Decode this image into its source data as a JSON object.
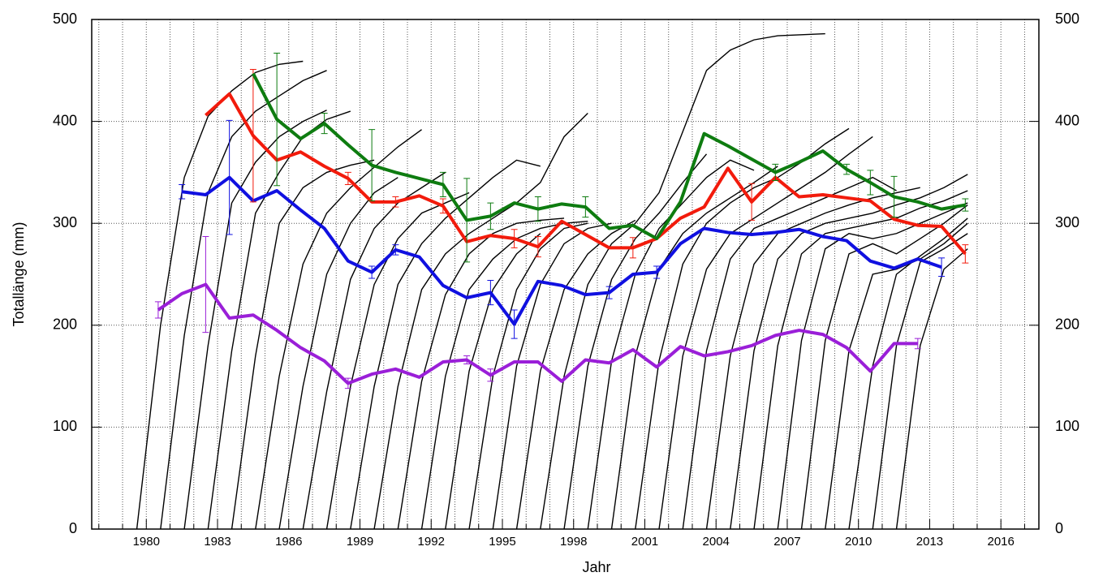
{
  "chart_data": {
    "type": "line",
    "x_label": "Jahr",
    "y_label": "Totallänge (mm)",
    "xlim": [
      1977.7,
      2017.6
    ],
    "xticks": [
      1980,
      1983,
      1986,
      1989,
      1992,
      1995,
      1998,
      2001,
      2004,
      2007,
      2010,
      2013,
      2016
    ],
    "xminorticks": [
      1978,
      1979,
      1981,
      1982,
      1984,
      1985,
      1987,
      1988,
      1990,
      1991,
      1993,
      1994,
      1996,
      1997,
      1999,
      2000,
      2002,
      2003,
      2005,
      2006,
      2008,
      2009,
      2011,
      2012,
      2014,
      2015,
      2017
    ],
    "ylim": [
      0,
      500
    ],
    "yticks": [
      0,
      100,
      200,
      300,
      400,
      500
    ],
    "y2lim": [
      0,
      500
    ],
    "y2ticks": [
      0,
      100,
      200,
      300,
      400,
      500
    ],
    "grid": true,
    "x": [
      1980.5,
      1981.5,
      1982.5,
      1983.5,
      1984.5,
      1985.5,
      1986.5,
      1987.5,
      1988.5,
      1989.5,
      1990.5,
      1991.5,
      1992.5,
      1993.5,
      1994.5,
      1995.5,
      1996.5,
      1997.5,
      1998.5,
      1999.5,
      2000.5,
      2001.5,
      2002.5,
      2003.5,
      2004.5,
      2005.5,
      2006.5,
      2007.5,
      2008.5,
      2009.5,
      2010.5,
      2011.5,
      2012.5,
      2013.5,
      2014.5
    ],
    "series": [
      {
        "color": "#9a1fd8",
        "values": [
          215,
          231,
          240,
          207,
          210,
          195,
          178,
          165,
          143,
          152,
          157,
          149,
          164,
          166,
          151,
          164,
          164,
          145,
          166,
          163,
          176,
          159,
          179,
          170,
          174,
          180,
          190,
          195,
          191,
          178,
          155,
          182,
          182,
          null,
          null
        ],
        "errors": [
          8,
          null,
          47,
          null,
          null,
          null,
          null,
          null,
          5,
          null,
          null,
          null,
          null,
          4,
          6,
          null,
          null,
          null,
          null,
          null,
          null,
          null,
          null,
          null,
          null,
          null,
          null,
          null,
          null,
          null,
          null,
          null,
          5,
          null,
          null
        ]
      },
      {
        "color": "#1010e0",
        "values": [
          null,
          331,
          328,
          345,
          322,
          332,
          313,
          295,
          263,
          252,
          274,
          267,
          239,
          227,
          232,
          201,
          243,
          239,
          230,
          232,
          250,
          252,
          280,
          295,
          291,
          289,
          291,
          294,
          287,
          283,
          263,
          256,
          265,
          257,
          null
        ],
        "errors": [
          null,
          7,
          null,
          56,
          null,
          null,
          null,
          null,
          null,
          6,
          5,
          null,
          null,
          null,
          12,
          14,
          null,
          null,
          null,
          6,
          null,
          6,
          null,
          null,
          null,
          null,
          null,
          null,
          null,
          null,
          null,
          null,
          null,
          9,
          null
        ]
      },
      {
        "color": "#f21b0c",
        "values": [
          null,
          null,
          406,
          427,
          386,
          362,
          370,
          356,
          344,
          321,
          321,
          327,
          317,
          282,
          288,
          285,
          277,
          302,
          289,
          276,
          276,
          285,
          305,
          316,
          354,
          321,
          345,
          326,
          328,
          325,
          322,
          304,
          298,
          297,
          270
        ],
        "errors": [
          null,
          null,
          null,
          null,
          65,
          null,
          null,
          null,
          6,
          null,
          5,
          null,
          7,
          null,
          null,
          9,
          10,
          null,
          null,
          null,
          10,
          null,
          null,
          null,
          null,
          18,
          null,
          null,
          null,
          null,
          null,
          null,
          null,
          null,
          9
        ]
      },
      {
        "color": "#0e7c10",
        "values": [
          null,
          null,
          null,
          null,
          447,
          402,
          383,
          398,
          377,
          357,
          350,
          344,
          338,
          303,
          307,
          320,
          314,
          319,
          316,
          295,
          298,
          285,
          321,
          388,
          376,
          363,
          350,
          360,
          371,
          353,
          340,
          326,
          321,
          314,
          318
        ],
        "errors": [
          null,
          null,
          null,
          null,
          null,
          65,
          null,
          10,
          null,
          35,
          null,
          null,
          12,
          41,
          13,
          null,
          12,
          null,
          10,
          null,
          null,
          null,
          null,
          null,
          null,
          null,
          8,
          null,
          null,
          5,
          12,
          20,
          null,
          null,
          6
        ]
      }
    ],
    "growth_curves": [
      {
        "x": [
          1979.6,
          1980.6,
          1981.6,
          1982.6,
          1983.6,
          1984.6,
          1985.6,
          1986.6
        ],
        "values": [
          0,
          200,
          345,
          405,
          430,
          448,
          456,
          459
        ]
      },
      {
        "x": [
          1980.6,
          1981.6,
          1982.6,
          1983.6,
          1984.6,
          1985.6,
          1986.6,
          1987.6
        ],
        "values": [
          0,
          190,
          330,
          385,
          410,
          425,
          440,
          450
        ]
      },
      {
        "x": [
          1981.6,
          1982.6,
          1983.6,
          1984.6,
          1985.6,
          1986.6,
          1987.6
        ],
        "values": [
          0,
          180,
          320,
          360,
          385,
          400,
          411
        ]
      },
      {
        "x": [
          1982.6,
          1983.6,
          1984.6,
          1985.6,
          1986.6,
          1987.6,
          1988.6
        ],
        "values": [
          0,
          175,
          310,
          350,
          385,
          402,
          410
        ]
      },
      {
        "x": [
          1983.6,
          1984.6,
          1985.6,
          1986.6,
          1987.6,
          1988.6,
          1989.6
        ],
        "values": [
          0,
          170,
          300,
          335,
          350,
          357,
          362
        ]
      },
      {
        "x": [
          1984.6,
          1985.6,
          1986.6,
          1987.6,
          1988.6,
          1989.6,
          1990.6,
          1991.6
        ],
        "values": [
          0,
          150,
          260,
          310,
          335,
          355,
          375,
          392
        ]
      },
      {
        "x": [
          1985.6,
          1986.6,
          1987.6,
          1988.6,
          1989.6,
          1990.6
        ],
        "values": [
          0,
          140,
          250,
          300,
          330,
          345
        ]
      },
      {
        "x": [
          1986.6,
          1987.6,
          1988.6,
          1989.6,
          1990.6,
          1991.6,
          1992.6
        ],
        "values": [
          0,
          135,
          245,
          295,
          320,
          335,
          350
        ]
      },
      {
        "x": [
          1987.6,
          1988.6,
          1989.6,
          1990.6,
          1991.6,
          1992.6,
          1993.6
        ],
        "values": [
          0,
          140,
          240,
          285,
          310,
          320,
          330
        ]
      },
      {
        "x": [
          1988.6,
          1989.6,
          1990.6,
          1991.6,
          1992.6,
          1993.6,
          1994.6,
          1995.6,
          1996.6
        ],
        "values": [
          0,
          140,
          240,
          280,
          305,
          325,
          345,
          362,
          356
        ]
      },
      {
        "x": [
          1989.6,
          1990.6,
          1991.6,
          1992.6,
          1993.6,
          1994.6,
          1995.6,
          1996.6,
          1997.6,
          1998.6
        ],
        "values": [
          0,
          140,
          235,
          270,
          290,
          305,
          320,
          340,
          385,
          408
        ]
      },
      {
        "x": [
          1990.6,
          1991.6,
          1992.6,
          1993.6,
          1994.6,
          1995.6,
          1996.6,
          1997.6
        ],
        "values": [
          0,
          145,
          230,
          270,
          290,
          300,
          303,
          305
        ]
      },
      {
        "x": [
          1991.6,
          1992.6,
          1993.6,
          1994.6,
          1995.6,
          1996.6,
          1997.6,
          1998.6
        ],
        "values": [
          0,
          150,
          235,
          265,
          285,
          295,
          300,
          302
        ]
      },
      {
        "x": [
          1992.6,
          1993.6,
          1994.6,
          1995.6,
          1996.6
        ],
        "values": [
          0,
          155,
          235,
          270,
          290
        ]
      },
      {
        "x": [
          1993.6,
          1994.6,
          1995.6,
          1996.6,
          1997.6,
          1998.6
        ],
        "values": [
          0,
          150,
          235,
          275,
          295,
          300
        ]
      },
      {
        "x": [
          1994.6,
          1995.6,
          1996.6,
          1997.6,
          1998.6,
          1999.6
        ],
        "values": [
          0,
          160,
          240,
          280,
          295,
          300
        ]
      },
      {
        "x": [
          1995.6,
          1996.6,
          1997.6,
          1998.6,
          1999.6,
          2000.6
        ],
        "values": [
          0,
          155,
          235,
          270,
          290,
          303
        ]
      },
      {
        "x": [
          1996.6,
          1997.6,
          1998.6,
          1999.6,
          2000.6,
          2001.6,
          2002.6,
          2003.6,
          2004.6,
          2005.6,
          2006.6,
          2007.6,
          2008.6
        ],
        "values": [
          0,
          150,
          240,
          280,
          300,
          330,
          390,
          450,
          470,
          480,
          484,
          485,
          486
        ]
      },
      {
        "x": [
          1997.6,
          1998.6,
          1999.6,
          2000.6,
          2001.6,
          2002.6,
          2003.6
        ],
        "values": [
          0,
          160,
          245,
          285,
          310,
          340,
          368
        ]
      },
      {
        "x": [
          1998.6,
          1999.6,
          2000.6,
          2001.6,
          2002.6,
          2003.6,
          2004.6,
          2005.6
        ],
        "values": [
          0,
          165,
          250,
          295,
          320,
          345,
          362,
          352
        ]
      },
      {
        "x": [
          1999.6,
          2000.6,
          2001.6,
          2002.6,
          2003.6,
          2004.6,
          2005.6,
          2006.6
        ],
        "values": [
          0,
          170,
          255,
          290,
          310,
          325,
          340,
          356
        ]
      },
      {
        "x": [
          2000.6,
          2001.6,
          2002.6,
          2003.6,
          2004.6,
          2005.6,
          2006.6,
          2007.6,
          2008.6,
          2009.6
        ],
        "values": [
          0,
          165,
          260,
          300,
          320,
          335,
          345,
          360,
          378,
          393
        ]
      },
      {
        "x": [
          2001.6,
          2002.6,
          2003.6,
          2004.6,
          2005.6,
          2006.6,
          2007.6,
          2008.6,
          2009.6,
          2010.6
        ],
        "values": [
          0,
          170,
          255,
          290,
          305,
          320,
          335,
          350,
          368,
          385
        ]
      },
      {
        "x": [
          2002.6,
          2003.6,
          2004.6,
          2005.6,
          2006.6,
          2007.6,
          2008.6,
          2009.6,
          2010.6,
          2011.6
        ],
        "values": [
          0,
          175,
          265,
          295,
          305,
          315,
          325,
          335,
          345,
          332
        ]
      },
      {
        "x": [
          2003.6,
          2004.6,
          2005.6,
          2006.6,
          2007.6,
          2008.6,
          2009.6,
          2010.6,
          2011.6,
          2012.6
        ],
        "values": [
          0,
          170,
          260,
          290,
          300,
          310,
          318,
          325,
          330,
          335
        ]
      },
      {
        "x": [
          2004.6,
          2005.6,
          2006.6,
          2007.6,
          2008.6,
          2009.6,
          2010.6,
          2011.6,
          2012.6,
          2013.6,
          2014.6
        ],
        "values": [
          0,
          175,
          265,
          290,
          300,
          305,
          310,
          318,
          325,
          335,
          348
        ]
      },
      {
        "x": [
          2005.6,
          2006.6,
          2007.6,
          2008.6,
          2009.6,
          2010.6,
          2011.6,
          2012.6,
          2013.6,
          2014.6
        ],
        "values": [
          0,
          180,
          270,
          290,
          295,
          300,
          305,
          315,
          322,
          332
        ]
      },
      {
        "x": [
          2006.6,
          2007.6,
          2008.6,
          2009.6,
          2010.6,
          2011.6,
          2012.6,
          2013.6,
          2014.6
        ],
        "values": [
          0,
          185,
          275,
          290,
          285,
          290,
          300,
          310,
          320
        ]
      },
      {
        "x": [
          2007.6,
          2008.6,
          2009.6,
          2010.6,
          2011.6,
          2012.6,
          2013.6,
          2014.6
        ],
        "values": [
          0,
          185,
          270,
          280,
          270,
          285,
          300,
          318
        ]
      },
      {
        "x": [
          2008.6,
          2009.6,
          2010.6,
          2011.6,
          2012.6,
          2013.6,
          2014.6
        ],
        "values": [
          0,
          175,
          250,
          255,
          265,
          280,
          300
        ]
      },
      {
        "x": [
          2009.6,
          2010.6,
          2011.6,
          2012.6,
          2013.6,
          2014.6
        ],
        "values": [
          0,
          160,
          250,
          268,
          285,
          305
        ]
      },
      {
        "x": [
          2010.6,
          2011.6,
          2012.6,
          2013.6,
          2014.6
        ],
        "values": [
          0,
          180,
          262,
          275,
          290
        ]
      },
      {
        "x": [
          2011.6,
          2012.6,
          2013.6,
          2014.6
        ],
        "values": [
          0,
          180,
          255,
          275
        ]
      }
    ]
  }
}
